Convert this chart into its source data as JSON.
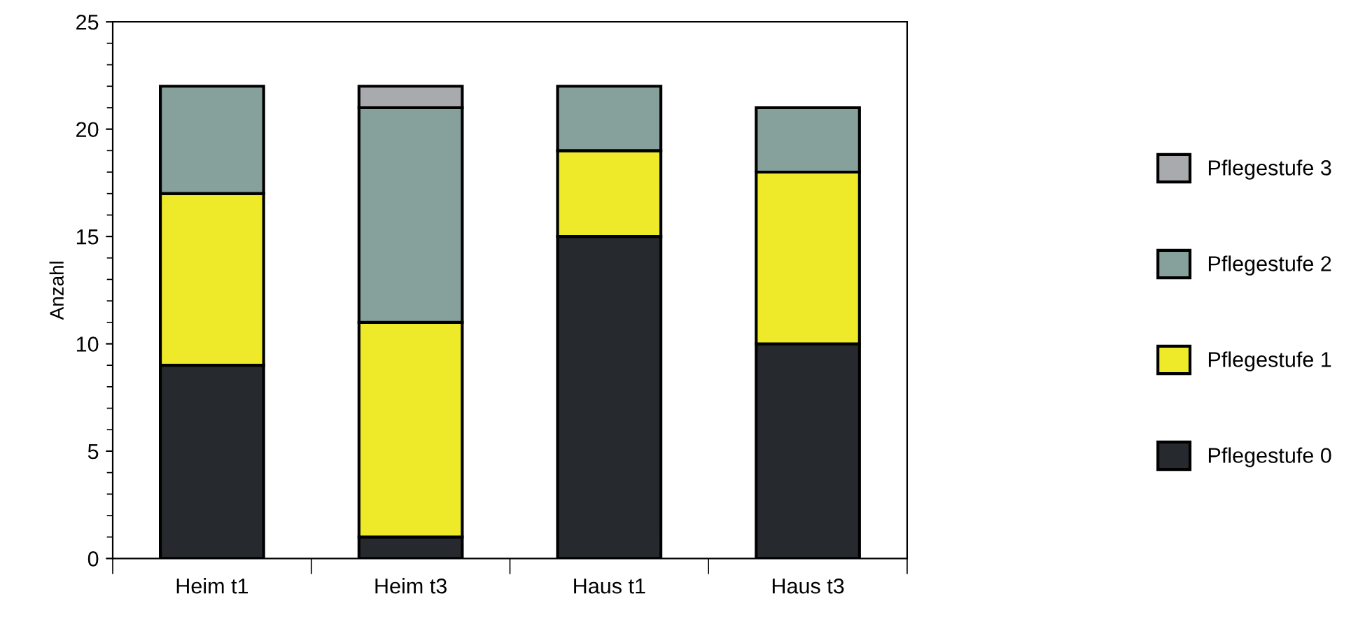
{
  "chart_data": {
    "type": "bar",
    "stacked": true,
    "ylabel": "Anzahl",
    "categories": [
      "Heim t1",
      "Heim t3",
      "Haus t1",
      "Haus t3"
    ],
    "series": [
      {
        "name": "Pflegestufe 0",
        "color": "#262a2e",
        "values": [
          9,
          1,
          15,
          10
        ]
      },
      {
        "name": "Pflegestufe 1",
        "color": "#eeea2a",
        "values": [
          8,
          10,
          4,
          8
        ]
      },
      {
        "name": "Pflegestufe 2",
        "color": "#86a09c",
        "values": [
          5,
          10,
          3,
          3
        ]
      },
      {
        "name": "Pflegestufe 3",
        "color": "#a8aaad",
        "values": [
          0,
          1,
          0,
          0
        ]
      }
    ],
    "ylim": [
      0,
      25
    ],
    "yticks": [
      0,
      5,
      10,
      15,
      20,
      25
    ],
    "grid": false,
    "legend": "right"
  }
}
